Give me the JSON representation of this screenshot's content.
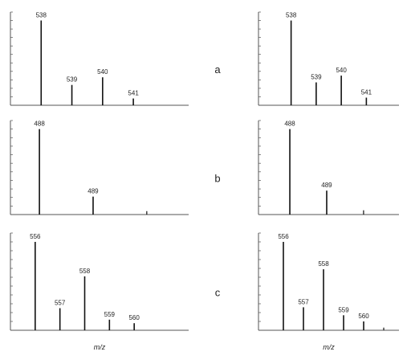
{
  "panel_labels": [
    "a",
    "b",
    "c"
  ],
  "chart_data": [
    {
      "type": "bar",
      "x": [
        538,
        539,
        540,
        541
      ],
      "values": [
        100,
        24,
        33,
        8
      ],
      "xlim": [
        537,
        542.8
      ],
      "ylim": [
        0,
        110
      ],
      "yticks": [
        0,
        10,
        20,
        30,
        40,
        50,
        60,
        70,
        80,
        90,
        100,
        110
      ],
      "color": "#111111"
    },
    {
      "type": "bar",
      "x": [
        538,
        539,
        540,
        541
      ],
      "values": [
        100,
        27,
        35,
        9
      ],
      "xlim": [
        536.7,
        542.3
      ],
      "ylim": [
        0,
        110
      ],
      "yticks": [
        0,
        10,
        20,
        30,
        40,
        50,
        60,
        70,
        80,
        90,
        100,
        110
      ],
      "color": "#111111"
    },
    {
      "type": "bar",
      "x": [
        488,
        489
      ],
      "values": [
        100,
        21
      ],
      "minor_x": [
        490
      ],
      "minor_values": [
        4
      ],
      "xlim": [
        487.46,
        490.78
      ],
      "ylim": [
        0,
        110
      ],
      "yticks": [
        0,
        10,
        20,
        30,
        40,
        50,
        60,
        70,
        80,
        90,
        100,
        110
      ],
      "color": "#111111"
    },
    {
      "type": "bar",
      "x": [
        488,
        489
      ],
      "values": [
        100,
        28
      ],
      "minor_x": [
        490
      ],
      "minor_values": [
        5
      ],
      "xlim": [
        487.15,
        490.96
      ],
      "ylim": [
        0,
        110
      ],
      "yticks": [
        0,
        10,
        20,
        30,
        40,
        50,
        60,
        70,
        80,
        90,
        100,
        110
      ],
      "color": "#111111"
    },
    {
      "type": "bar",
      "x": [
        556,
        557,
        558,
        559,
        560
      ],
      "values": [
        100,
        25,
        61,
        12,
        8
      ],
      "xlim": [
        555,
        562.2
      ],
      "ylim": [
        0,
        110
      ],
      "yticks": [
        0,
        10,
        20,
        30,
        40,
        50,
        60,
        70,
        80,
        90,
        100,
        110
      ],
      "color": "#111111",
      "xlabel": "m/z"
    },
    {
      "type": "bar",
      "x": [
        556,
        557,
        558,
        559,
        560
      ],
      "values": [
        100,
        26,
        69,
        17,
        10
      ],
      "minor_x": [
        561
      ],
      "minor_values": [
        3
      ],
      "xlim": [
        554.76,
        561.76
      ],
      "ylim": [
        0,
        110
      ],
      "yticks": [
        0,
        10,
        20,
        30,
        40,
        50,
        60,
        70,
        80,
        90,
        100,
        110
      ],
      "color": "#111111",
      "xlabel": "m/z"
    }
  ]
}
